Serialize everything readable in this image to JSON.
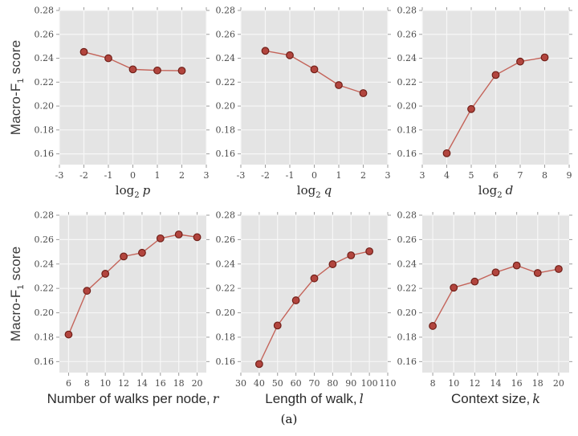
{
  "figure": {
    "caption": "(a)",
    "ylabel": {
      "pre": "Macro-F",
      "sub": "1",
      "post": " score"
    },
    "colors": {
      "plot_bg": "#e4e4e4",
      "grid": "#f7f7f7",
      "tick": "#9b9b9b",
      "line": "#c4645a",
      "marker_fill": "#b2453e",
      "marker_edge": "#701f18",
      "tick_label": "#4a4a4a"
    }
  },
  "chart_data": [
    {
      "type": "line",
      "name": "macro-f1-vs-log2p",
      "xlabel": {
        "pre": "log",
        "sub": "2",
        "var": "p"
      },
      "x": [
        -2,
        -1,
        0,
        1,
        2
      ],
      "y": [
        0.2453,
        0.24,
        0.2307,
        0.2298,
        0.2296
      ],
      "xlim": [
        -3,
        3
      ],
      "ylim": [
        0.151,
        0.28
      ],
      "xticks": [
        "-3",
        "-2",
        "-1",
        "0",
        "1",
        "2",
        "3"
      ],
      "yticks": [
        "0.16",
        "0.18",
        "0.20",
        "0.22",
        "0.24",
        "0.26",
        "0.28"
      ],
      "grid": true,
      "legend": "none"
    },
    {
      "type": "line",
      "name": "macro-f1-vs-log2q",
      "xlabel": {
        "pre": "log",
        "sub": "2",
        "var": "q"
      },
      "x": [
        -2,
        -1,
        0,
        1,
        2
      ],
      "y": [
        0.2462,
        0.2425,
        0.2307,
        0.2175,
        0.2108
      ],
      "xlim": [
        -3,
        3
      ],
      "ylim": [
        0.151,
        0.28
      ],
      "xticks": [
        "-3",
        "-2",
        "-1",
        "0",
        "1",
        "2",
        "3"
      ],
      "yticks": [
        "0.16",
        "0.18",
        "0.20",
        "0.22",
        "0.24",
        "0.26",
        "0.28"
      ],
      "grid": true,
      "legend": "none"
    },
    {
      "type": "line",
      "name": "macro-f1-vs-log2d",
      "xlabel": {
        "pre": "log",
        "sub": "2",
        "var": "d"
      },
      "x": [
        4,
        5,
        6,
        7,
        8
      ],
      "y": [
        0.1605,
        0.1975,
        0.226,
        0.2372,
        0.2407
      ],
      "xlim": [
        3,
        9
      ],
      "ylim": [
        0.151,
        0.28
      ],
      "xticks": [
        "3",
        "4",
        "5",
        "6",
        "7",
        "8",
        "9"
      ],
      "yticks": [
        "0.16",
        "0.18",
        "0.20",
        "0.22",
        "0.24",
        "0.26",
        "0.28"
      ],
      "grid": true,
      "legend": "none"
    },
    {
      "type": "line",
      "name": "macro-f1-vs-num-walks",
      "xlabel": {
        "text": "Number of walks per node,",
        "var": "r"
      },
      "x": [
        6,
        8,
        10,
        12,
        14,
        16,
        18,
        20
      ],
      "y": [
        0.1822,
        0.218,
        0.232,
        0.2462,
        0.2492,
        0.261,
        0.2642,
        0.262
      ],
      "xlim": [
        5,
        21
      ],
      "ylim": [
        0.151,
        0.28
      ],
      "xticks": [
        "6",
        "8",
        "10",
        "12",
        "14",
        "16",
        "18",
        "20"
      ],
      "yticks": [
        "0.16",
        "0.18",
        "0.20",
        "0.22",
        "0.24",
        "0.26",
        "0.28"
      ],
      "grid": true,
      "legend": "none"
    },
    {
      "type": "line",
      "name": "macro-f1-vs-walk-length",
      "xlabel": {
        "text": "Length of walk,",
        "var": "l"
      },
      "x": [
        40,
        50,
        60,
        70,
        80,
        90,
        100
      ],
      "y": [
        0.158,
        0.1896,
        0.2102,
        0.2282,
        0.2398,
        0.2471,
        0.2504
      ],
      "xlim": [
        30,
        110
      ],
      "ylim": [
        0.151,
        0.28
      ],
      "xticks": [
        "30",
        "40",
        "50",
        "60",
        "70",
        "80",
        "90",
        "100",
        "110"
      ],
      "yticks": [
        "0.16",
        "0.18",
        "0.20",
        "0.22",
        "0.24",
        "0.26",
        "0.28"
      ],
      "grid": true,
      "legend": "none"
    },
    {
      "type": "line",
      "name": "macro-f1-vs-context-size",
      "xlabel": {
        "text": "Context size,",
        "var": "k"
      },
      "x": [
        8,
        10,
        12,
        14,
        16,
        18,
        20
      ],
      "y": [
        0.1892,
        0.2206,
        0.2256,
        0.2331,
        0.2388,
        0.2326,
        0.2359
      ],
      "xlim": [
        7,
        21
      ],
      "ylim": [
        0.151,
        0.28
      ],
      "xticks": [
        "8",
        "10",
        "12",
        "14",
        "16",
        "18",
        "20"
      ],
      "yticks": [
        "0.16",
        "0.18",
        "0.20",
        "0.22",
        "0.24",
        "0.26",
        "0.28"
      ],
      "grid": true,
      "legend": "none"
    }
  ]
}
